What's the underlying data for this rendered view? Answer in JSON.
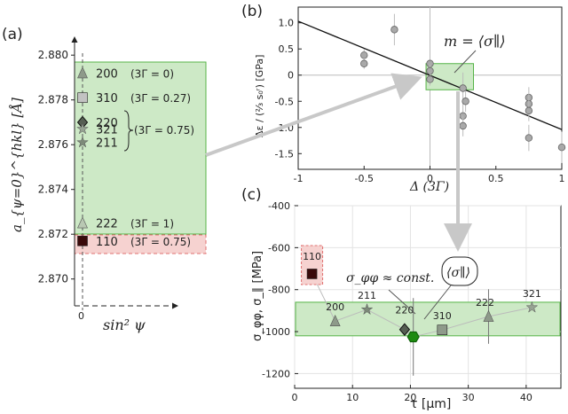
{
  "panel_labels": {
    "a": "(a)",
    "b": "(b)",
    "c": "(c)"
  },
  "colors": {
    "green_fill": "#cde9c6",
    "green_stroke": "#56b447",
    "red_fill": "#f6d2d0",
    "red_stroke": "#e07070",
    "arrow": "#c8c8c8",
    "line": "#111111"
  },
  "chart_data": [
    {
      "id": "a",
      "type": "scatter",
      "xlabel": "sin² ψ",
      "ylabel": "a_{ψ=0}^{hkl} [Å]",
      "x_tick_labels": [
        "0"
      ],
      "y_tick_labels": [
        "2.870",
        "2.872",
        "2.874",
        "2.876",
        "2.878",
        "2.880"
      ],
      "ylim": [
        2.8688,
        2.8808
      ],
      "points": [
        {
          "hkl": "200",
          "y": 2.8792,
          "marker": "triangle",
          "color": "#8e9a8a",
          "label": "200",
          "note": "(3Γ = 0)"
        },
        {
          "hkl": "310",
          "y": 2.8781,
          "marker": "square",
          "color": "#c2c2c2",
          "label": "310",
          "note": "(3Γ = 0.27)"
        },
        {
          "hkl": "220",
          "y": 2.877,
          "marker": "diamond",
          "color": "#555e52",
          "label": "220",
          "note": ""
        },
        {
          "hkl": "321",
          "y": 2.8767,
          "marker": "star",
          "color": "#97a393",
          "label": "321",
          "note": ""
        },
        {
          "hkl": "211",
          "y": 2.8761,
          "marker": "star",
          "color": "#7d8a79",
          "label": "211",
          "note": ""
        },
        {
          "hkl": "222",
          "y": 2.8725,
          "marker": "triangle",
          "color": "#b9c8b3",
          "label": "222",
          "note": "(3Γ = 1)"
        },
        {
          "hkl": "110",
          "y": 2.8717,
          "marker": "square",
          "color": "#3a0a0a",
          "label": "110",
          "note": "(3Γ = 0.75)"
        }
      ],
      "group_note": "(3Γ = 0.75)"
    },
    {
      "id": "b",
      "type": "scatter",
      "xlabel": "Δ (3Γ)",
      "ylabel": "Δε / (²⁄₃ s₀ʳ) [GPa]",
      "x_tick_labels": [
        "-1",
        "-0.5",
        "0",
        "0.5",
        "1"
      ],
      "y_tick_labels": [
        "1.0",
        "0.5",
        "0",
        "-0.5",
        "-1.0",
        "-1.5"
      ],
      "xlim": [
        -1,
        1
      ],
      "ylim": [
        -1.8,
        1.3
      ],
      "annotation": "m = ⟨σ∥⟩",
      "fit_line": {
        "x": [
          -1,
          1
        ],
        "y": [
          1.03,
          -1.04
        ]
      },
      "points": [
        {
          "x": -0.5,
          "y": 0.38,
          "err": 0.12
        },
        {
          "x": -0.5,
          "y": 0.22,
          "err": 0.1
        },
        {
          "x": -0.27,
          "y": 0.87,
          "err": 0.3
        },
        {
          "x": 0.0,
          "y": 0.22,
          "err": 0.15
        },
        {
          "x": 0.0,
          "y": 0.08,
          "err": 0.12
        },
        {
          "x": 0.0,
          "y": -0.08,
          "err": 0.12
        },
        {
          "x": 0.25,
          "y": -0.25,
          "err": 0.3
        },
        {
          "x": 0.25,
          "y": -0.78,
          "err": 0.25
        },
        {
          "x": 0.25,
          "y": -0.97,
          "err": 0.2
        },
        {
          "x": 0.27,
          "y": -0.5,
          "err": 0.2
        },
        {
          "x": 0.75,
          "y": -0.43,
          "err": 0.2
        },
        {
          "x": 0.75,
          "y": -0.55,
          "err": 0.2
        },
        {
          "x": 0.75,
          "y": -0.68,
          "err": 0.2
        },
        {
          "x": 0.75,
          "y": -1.2,
          "err": 0.25
        },
        {
          "x": 1.0,
          "y": -1.38,
          "err": 0.3
        }
      ]
    },
    {
      "id": "c",
      "type": "scatter",
      "xlabel": "τ [μm]",
      "ylabel": "σ_φφ, σ_∥ [MPa]",
      "x_tick_labels": [
        "0",
        "10",
        "20",
        "30",
        "40"
      ],
      "y_tick_labels": [
        "-400",
        "-600",
        "-800",
        "-1000",
        "-1200"
      ],
      "xlim": [
        0,
        46
      ],
      "ylim": [
        -1270,
        -400
      ],
      "annotation_const": "σ_φφ ≈ const.",
      "annotation_par": "⟨σ∥⟩",
      "band": [
        -1020,
        -860
      ],
      "points": [
        {
          "label": "110",
          "x": 3.0,
          "y": -725,
          "err": 0,
          "marker": "square",
          "color": "#3a0a0a"
        },
        {
          "label": "200",
          "x": 7.0,
          "y": -950,
          "err": 0,
          "marker": "triangle",
          "color": "#8e9a8a"
        },
        {
          "label": "211",
          "x": 12.5,
          "y": -895,
          "err": 0,
          "marker": "star",
          "color": "#7d8a79"
        },
        {
          "label": "220",
          "x": 19.0,
          "y": -990,
          "err": 0,
          "marker": "diamond",
          "color": "#555e52"
        },
        {
          "label": "",
          "x": 20.5,
          "y": -1025,
          "err": 185,
          "marker": "hexagon",
          "color": "#1d8a10"
        },
        {
          "label": "310",
          "x": 25.5,
          "y": -992,
          "err": 0,
          "marker": "square",
          "color": "#8e9a8a"
        },
        {
          "label": "222",
          "x": 33.5,
          "y": -928,
          "err": 130,
          "marker": "triangle",
          "color": "#8e9a8a"
        },
        {
          "label": "321",
          "x": 41.0,
          "y": -885,
          "err": 0,
          "marker": "star",
          "color": "#97a393"
        }
      ]
    }
  ]
}
